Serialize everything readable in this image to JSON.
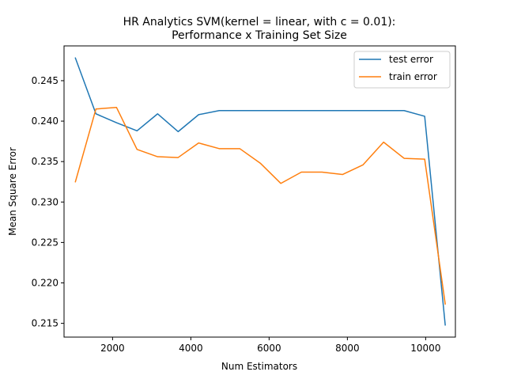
{
  "chart_data": {
    "type": "line",
    "title": "HR Analytics SVM(kernel = linear, with c = 0.01):",
    "subtitle": "Performance x Training Set Size",
    "xlabel": "Num Estimators",
    "ylabel": "Mean Square Error",
    "xlim": [
      760,
      10760
    ],
    "ylim": [
      0.2133,
      0.2493
    ],
    "xticks": [
      2000,
      4000,
      6000,
      8000,
      10000
    ],
    "xtick_labels": [
      "2000",
      "4000",
      "6000",
      "8000",
      "10000"
    ],
    "yticks": [
      0.215,
      0.22,
      0.225,
      0.23,
      0.235,
      0.24,
      0.245
    ],
    "ytick_labels": [
      "0.215",
      "0.220",
      "0.225",
      "0.230",
      "0.235",
      "0.240",
      "0.245"
    ],
    "grid": false,
    "legend_position": "top-right",
    "x": [
      1050,
      1575,
      2100,
      2625,
      3150,
      3675,
      4200,
      4725,
      5250,
      5775,
      6300,
      6825,
      7350,
      7875,
      8400,
      8925,
      9450,
      9975,
      10500
    ],
    "series": [
      {
        "name": "test error",
        "color": "#1f77b4",
        "values": [
          0.2478,
          0.2409,
          0.2398,
          0.2388,
          0.2409,
          0.2387,
          0.2408,
          0.2413,
          0.2413,
          0.2413,
          0.2413,
          0.2413,
          0.2413,
          0.2413,
          0.2413,
          0.2413,
          0.2413,
          0.2406,
          0.2148
        ]
      },
      {
        "name": "train error",
        "color": "#ff7f0e",
        "values": [
          0.2325,
          0.2415,
          0.2417,
          0.2365,
          0.2356,
          0.2355,
          0.2373,
          0.2366,
          0.2366,
          0.2348,
          0.2323,
          0.2337,
          0.2337,
          0.2334,
          0.2346,
          0.2374,
          0.2354,
          0.2353,
          0.2174
        ]
      }
    ]
  }
}
